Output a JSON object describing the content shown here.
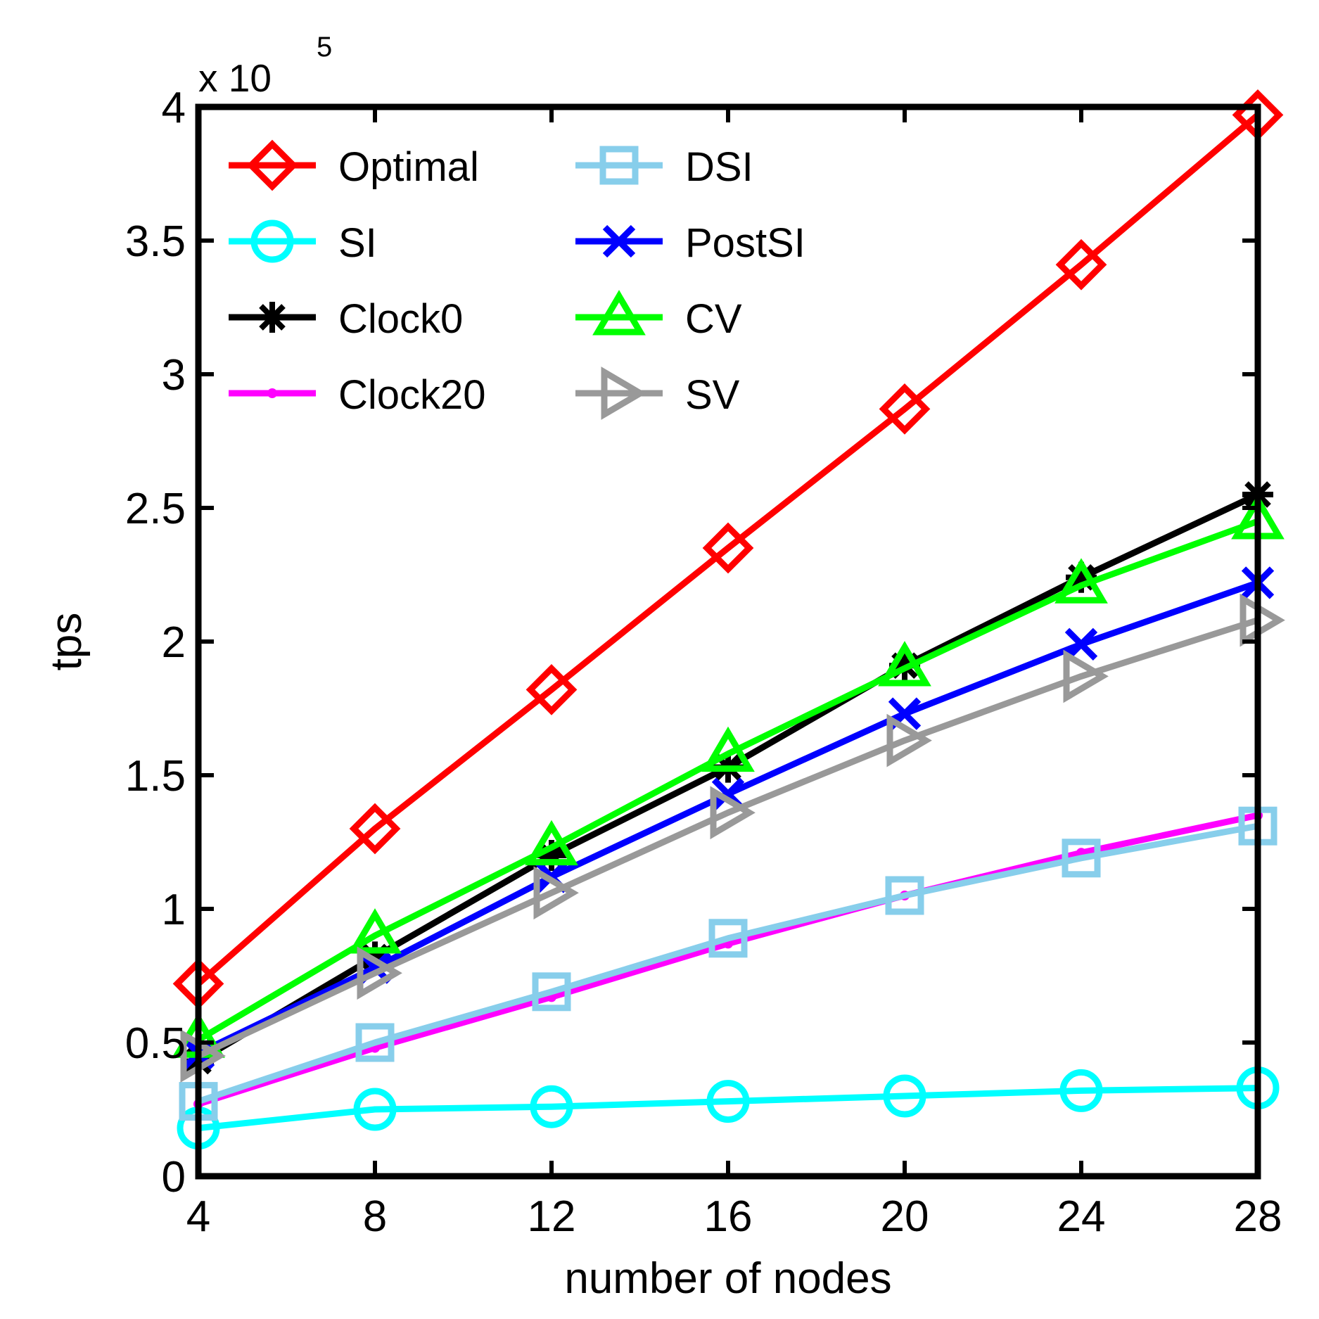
{
  "chart_data": {
    "type": "line",
    "title": "",
    "xlabel": "number of nodes",
    "ylabel": "tps",
    "y_multiplier_label": "x 10",
    "y_multiplier_exponent": "5",
    "x": [
      4,
      8,
      12,
      16,
      20,
      24,
      28
    ],
    "x_ticks": [
      4,
      8,
      12,
      16,
      20,
      24,
      28
    ],
    "x_tick_labels": [
      "4",
      "8",
      "12",
      "16",
      "20",
      "24",
      "28"
    ],
    "xlim": [
      4,
      28
    ],
    "y_ticks": [
      0,
      0.5,
      1,
      1.5,
      2,
      2.5,
      3,
      3.5,
      4
    ],
    "y_tick_labels": [
      "0",
      "0.5",
      "1",
      "1.5",
      "2",
      "2.5",
      "3",
      "3.5",
      "4"
    ],
    "ylim": [
      0,
      4
    ],
    "grid": false,
    "legend_position": "top-left",
    "series": [
      {
        "name": "Optimal",
        "color": "#ff0000",
        "marker": "diamond",
        "values": [
          0.72,
          1.3,
          1.82,
          2.35,
          2.87,
          3.41,
          3.97
        ]
      },
      {
        "name": "SI",
        "color": "#00ffff",
        "marker": "circle",
        "values": [
          0.18,
          0.25,
          0.26,
          0.28,
          0.3,
          0.32,
          0.33
        ]
      },
      {
        "name": "Clock0",
        "color": "#000000",
        "marker": "asterisk",
        "values": [
          0.43,
          0.82,
          1.2,
          1.53,
          1.91,
          2.24,
          2.55
        ]
      },
      {
        "name": "Clock20",
        "color": "#ff00ff",
        "marker": "point",
        "values": [
          0.27,
          0.48,
          0.67,
          0.87,
          1.05,
          1.21,
          1.35
        ]
      },
      {
        "name": "DSI",
        "color": "#87ceeb",
        "marker": "square",
        "values": [
          0.28,
          0.5,
          0.69,
          0.89,
          1.05,
          1.19,
          1.31
        ]
      },
      {
        "name": "PostSI",
        "color": "#0000ff",
        "marker": "x",
        "values": [
          0.46,
          0.78,
          1.12,
          1.43,
          1.73,
          1.99,
          2.22
        ]
      },
      {
        "name": "CV",
        "color": "#00ff00",
        "marker": "triangle-up",
        "values": [
          0.51,
          0.9,
          1.23,
          1.58,
          1.9,
          2.21,
          2.45
        ]
      },
      {
        "name": "SV",
        "color": "#999999",
        "marker": "triangle-right",
        "values": [
          0.45,
          0.76,
          1.06,
          1.36,
          1.63,
          1.87,
          2.08
        ]
      }
    ],
    "legend_columns": [
      [
        "Optimal",
        "SI",
        "Clock0",
        "Clock20"
      ],
      [
        "DSI",
        "PostSI",
        "CV",
        "SV"
      ]
    ]
  }
}
